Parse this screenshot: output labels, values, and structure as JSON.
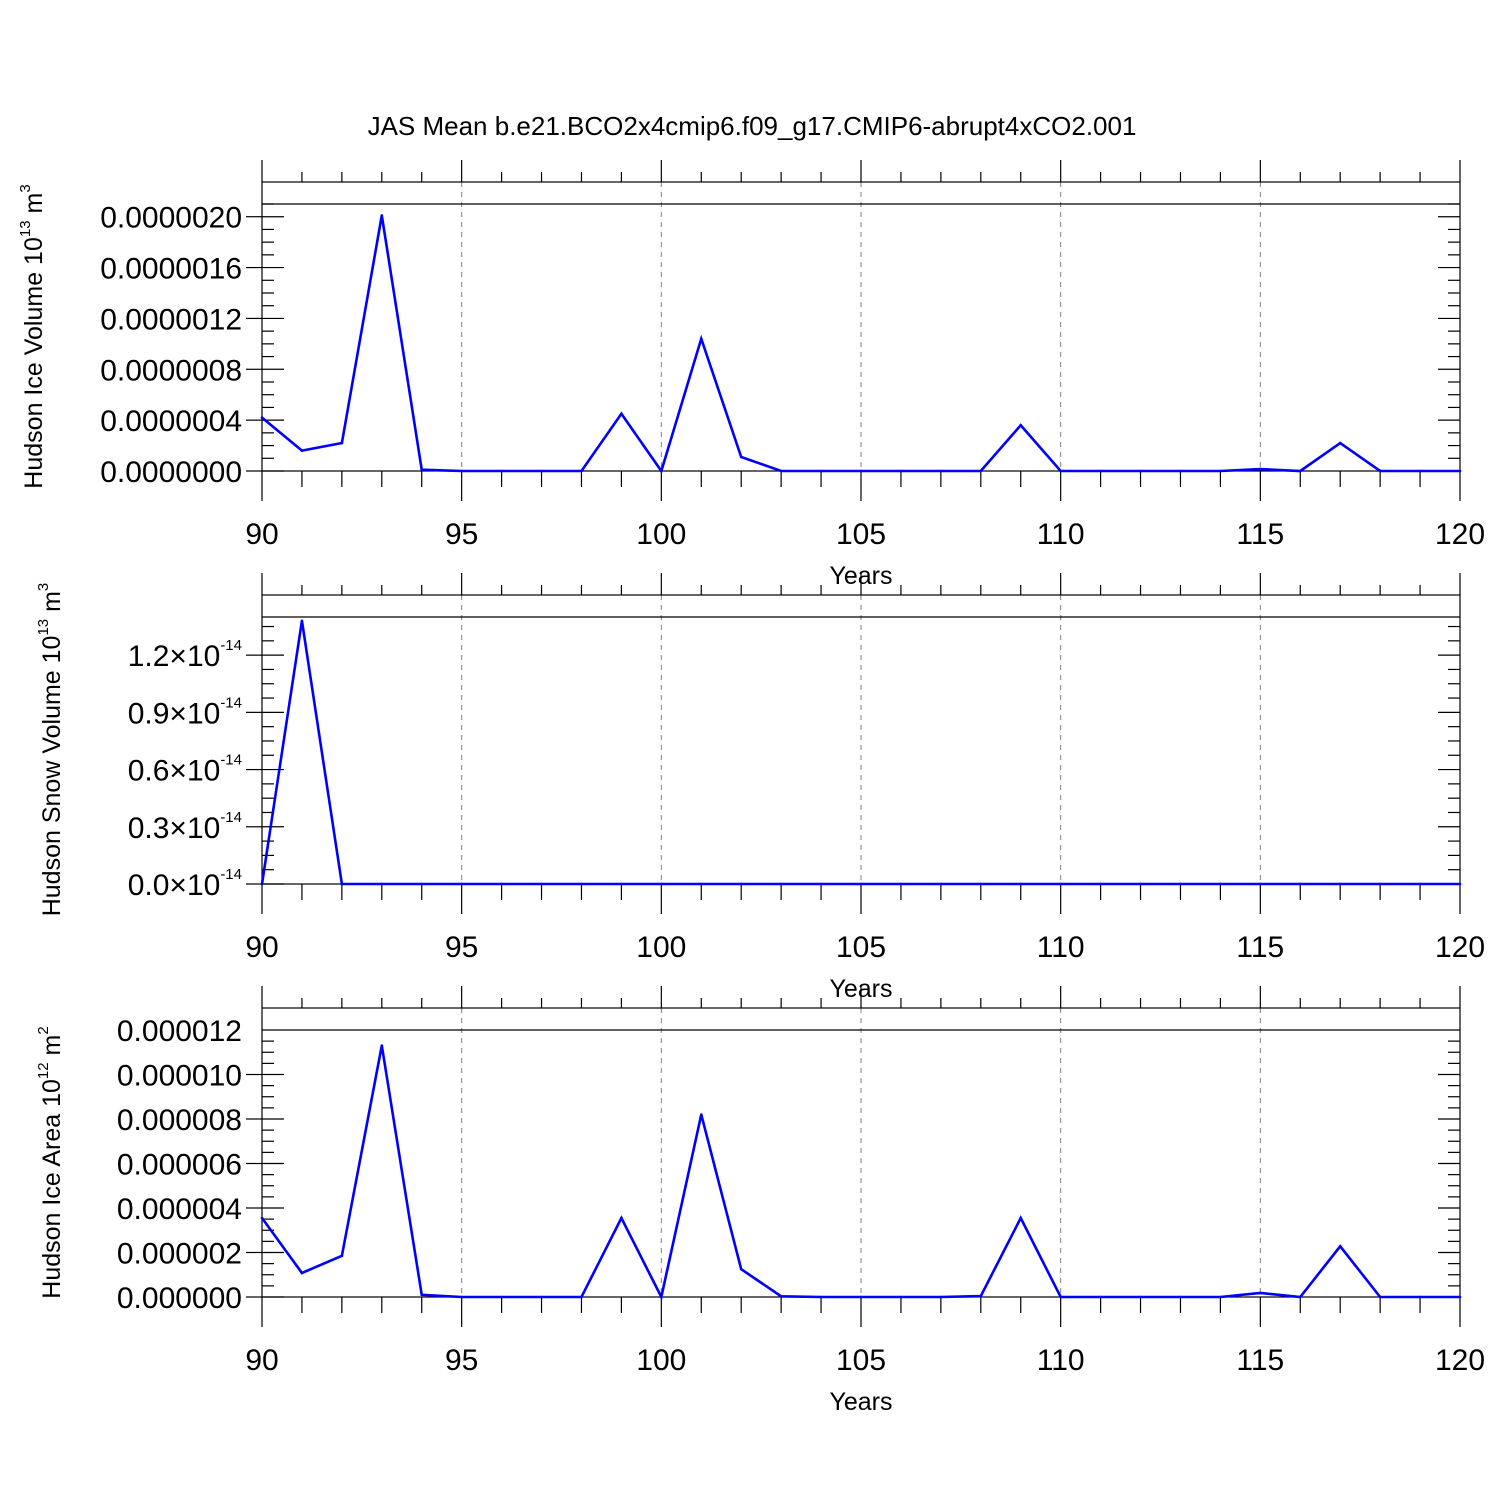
{
  "title": "JAS Mean b.e21.BCO2x4cmip6.f09_g17.CMIP6-abrupt4xCO2.001",
  "colors": {
    "series": "#0000ff",
    "axis": "#000000",
    "grid": "#808080"
  },
  "chart_data": [
    {
      "type": "line",
      "xlabel": "Years",
      "ylabel": {
        "text": "Hudson Ice Volume 10",
        "exp": "13",
        "unit": "m",
        "unit_exp": "3"
      },
      "xlim": [
        90,
        120
      ],
      "ylim": [
        0,
        2.1e-06
      ],
      "x_ticks": [
        "90",
        "95",
        "100",
        "105",
        "110",
        "115",
        "120"
      ],
      "y_ticks": [
        {
          "value": 0.0,
          "label": "0.0000000"
        },
        {
          "value": 4e-07,
          "label": "0.0000004"
        },
        {
          "value": 8e-07,
          "label": "0.0000008"
        },
        {
          "value": 1.2e-06,
          "label": "0.0000012"
        },
        {
          "value": 1.6e-06,
          "label": "0.0000016"
        },
        {
          "value": 2e-06,
          "label": "0.0000020"
        }
      ],
      "grid": "vertical-dashed",
      "x": [
        90,
        91,
        92,
        93,
        94,
        95,
        96,
        97,
        98,
        99,
        100,
        101,
        102,
        103,
        104,
        105,
        106,
        107,
        108,
        109,
        110,
        111,
        112,
        113,
        114,
        115,
        116,
        117,
        118,
        119,
        120
      ],
      "values": [
        4.2e-07,
        1.6e-07,
        2.2e-07,
        2.01e-06,
        1e-08,
        0,
        0,
        0,
        0,
        4.5e-07,
        0,
        1.04e-06,
        1.1e-07,
        0,
        0,
        0,
        0,
        0,
        0,
        3.6e-07,
        0,
        0,
        0,
        0,
        0,
        1.5e-08,
        0,
        2.2e-07,
        0,
        0,
        0
      ]
    },
    {
      "type": "line",
      "xlabel": "Years",
      "ylabel": {
        "text": "Hudson Snow Volume 10",
        "exp": "13",
        "unit": "m",
        "unit_exp": "3"
      },
      "xlim": [
        90,
        120
      ],
      "ylim": [
        0,
        1.4e-14
      ],
      "x_ticks": [
        "90",
        "95",
        "100",
        "105",
        "110",
        "115",
        "120"
      ],
      "y_ticks": [
        {
          "value": 0.0,
          "label": "0.0",
          "mult": "×10",
          "exp": "-14"
        },
        {
          "value": 3e-15,
          "label": "0.3",
          "mult": "×10",
          "exp": "-14"
        },
        {
          "value": 6e-15,
          "label": "0.6",
          "mult": "×10",
          "exp": "-14"
        },
        {
          "value": 9e-15,
          "label": "0.9",
          "mult": "×10",
          "exp": "-14"
        },
        {
          "value": 1.2e-14,
          "label": "1.2",
          "mult": "×10",
          "exp": "-14"
        }
      ],
      "grid": "vertical-dashed",
      "x": [
        90,
        91,
        92,
        93,
        94,
        95,
        96,
        97,
        98,
        99,
        100,
        101,
        102,
        103,
        104,
        105,
        106,
        107,
        108,
        109,
        110,
        111,
        112,
        113,
        114,
        115,
        116,
        117,
        118,
        119,
        120
      ],
      "values": [
        0,
        1.38e-14,
        0,
        0,
        0,
        0,
        0,
        0,
        0,
        0,
        0,
        0,
        0,
        0,
        0,
        0,
        0,
        0,
        0,
        0,
        0,
        0,
        0,
        0,
        0,
        0,
        0,
        0,
        0,
        0,
        0
      ]
    },
    {
      "type": "line",
      "xlabel": "Years",
      "ylabel": {
        "text": "Hudson Ice Area 10",
        "exp": "12",
        "unit": "m",
        "unit_exp": "2"
      },
      "xlim": [
        90,
        120
      ],
      "ylim": [
        0,
        1.2e-05
      ],
      "x_ticks": [
        "90",
        "95",
        "100",
        "105",
        "110",
        "115",
        "120"
      ],
      "y_ticks": [
        {
          "value": 0.0,
          "label": "0.000000"
        },
        {
          "value": 2e-06,
          "label": "0.000002"
        },
        {
          "value": 4e-06,
          "label": "0.000004"
        },
        {
          "value": 6e-06,
          "label": "0.000006"
        },
        {
          "value": 8e-06,
          "label": "0.000008"
        },
        {
          "value": 1e-05,
          "label": "0.000010"
        },
        {
          "value": 1.2e-05,
          "label": "0.000012"
        }
      ],
      "grid": "vertical-dashed",
      "x": [
        90,
        91,
        92,
        93,
        94,
        95,
        96,
        97,
        98,
        99,
        100,
        101,
        102,
        103,
        104,
        105,
        106,
        107,
        108,
        109,
        110,
        111,
        112,
        113,
        114,
        115,
        116,
        117,
        118,
        119,
        120
      ],
      "values": [
        3.55e-06,
        1.08e-06,
        1.85e-06,
        1.13e-05,
        1e-07,
        0,
        0,
        0,
        0,
        3.55e-06,
        0,
        8.2e-06,
        1.25e-06,
        3e-08,
        0,
        0,
        0,
        0,
        4e-08,
        3.55e-06,
        0,
        0,
        0,
        0,
        0,
        1.8e-07,
        0,
        2.28e-06,
        0,
        0,
        0
      ]
    }
  ]
}
